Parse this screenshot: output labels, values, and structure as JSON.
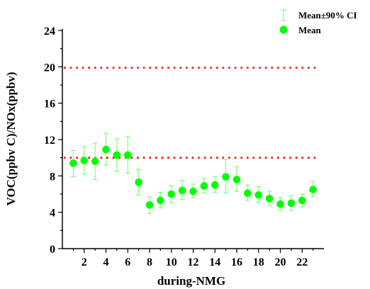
{
  "chart_data": {
    "type": "scatter",
    "xlabel": "during-NMG",
    "ylabel": "VOC(ppbv C)/NOx(ppbv)",
    "xlim": [
      0,
      24
    ],
    "ylim": [
      0,
      24
    ],
    "xticks": [
      2,
      4,
      6,
      8,
      10,
      12,
      14,
      16,
      18,
      20,
      22
    ],
    "yticks": [
      0,
      4,
      8,
      12,
      16,
      20,
      24
    ],
    "grid": false,
    "legend_position": "top-right",
    "legend": [
      {
        "label": "Mean±90% CI",
        "kind": "errorbar"
      },
      {
        "label": "Mean",
        "kind": "marker"
      }
    ],
    "reference_lines": [
      {
        "y": 19.9,
        "style": "dotted",
        "color": "#ff0000"
      },
      {
        "y": 10.0,
        "style": "dotted",
        "color": "#ff0000"
      }
    ],
    "series": [
      {
        "marker_color": "#00ff00",
        "errorbar_color": "#66ff66",
        "points": [
          {
            "x": 1,
            "y": 9.4,
            "low": 7.9,
            "high": 10.8
          },
          {
            "x": 2,
            "y": 9.7,
            "low": 8.2,
            "high": 11.2
          },
          {
            "x": 3,
            "y": 9.6,
            "low": 7.6,
            "high": 11.6
          },
          {
            "x": 4,
            "y": 10.9,
            "low": 9.2,
            "high": 12.7
          },
          {
            "x": 5,
            "y": 10.3,
            "low": 8.5,
            "high": 12.1
          },
          {
            "x": 6,
            "y": 10.3,
            "low": 8.3,
            "high": 12.3
          },
          {
            "x": 7,
            "y": 7.3,
            "low": 5.9,
            "high": 8.7
          },
          {
            "x": 8,
            "y": 4.8,
            "low": 3.9,
            "high": 5.7
          },
          {
            "x": 9,
            "y": 5.3,
            "low": 4.5,
            "high": 6.2
          },
          {
            "x": 10,
            "y": 6.0,
            "low": 5.1,
            "high": 6.9
          },
          {
            "x": 11,
            "y": 6.4,
            "low": 5.4,
            "high": 7.5
          },
          {
            "x": 12,
            "y": 6.3,
            "low": 5.6,
            "high": 7.1
          },
          {
            "x": 13,
            "y": 6.9,
            "low": 6.1,
            "high": 7.7
          },
          {
            "x": 14,
            "y": 7.0,
            "low": 6.2,
            "high": 7.9
          },
          {
            "x": 15,
            "y": 7.9,
            "low": 6.1,
            "high": 9.8
          },
          {
            "x": 16,
            "y": 7.6,
            "low": 6.3,
            "high": 9.0
          },
          {
            "x": 17,
            "y": 6.1,
            "low": 5.3,
            "high": 7.0
          },
          {
            "x": 18,
            "y": 5.9,
            "low": 5.1,
            "high": 6.8
          },
          {
            "x": 19,
            "y": 5.5,
            "low": 4.7,
            "high": 6.3
          },
          {
            "x": 20,
            "y": 4.9,
            "low": 4.2,
            "high": 5.6
          },
          {
            "x": 21,
            "y": 5.0,
            "low": 4.2,
            "high": 5.8
          },
          {
            "x": 22,
            "y": 5.3,
            "low": 4.6,
            "high": 6.0
          },
          {
            "x": 23,
            "y": 6.5,
            "low": 5.7,
            "high": 7.4
          }
        ]
      }
    ]
  }
}
